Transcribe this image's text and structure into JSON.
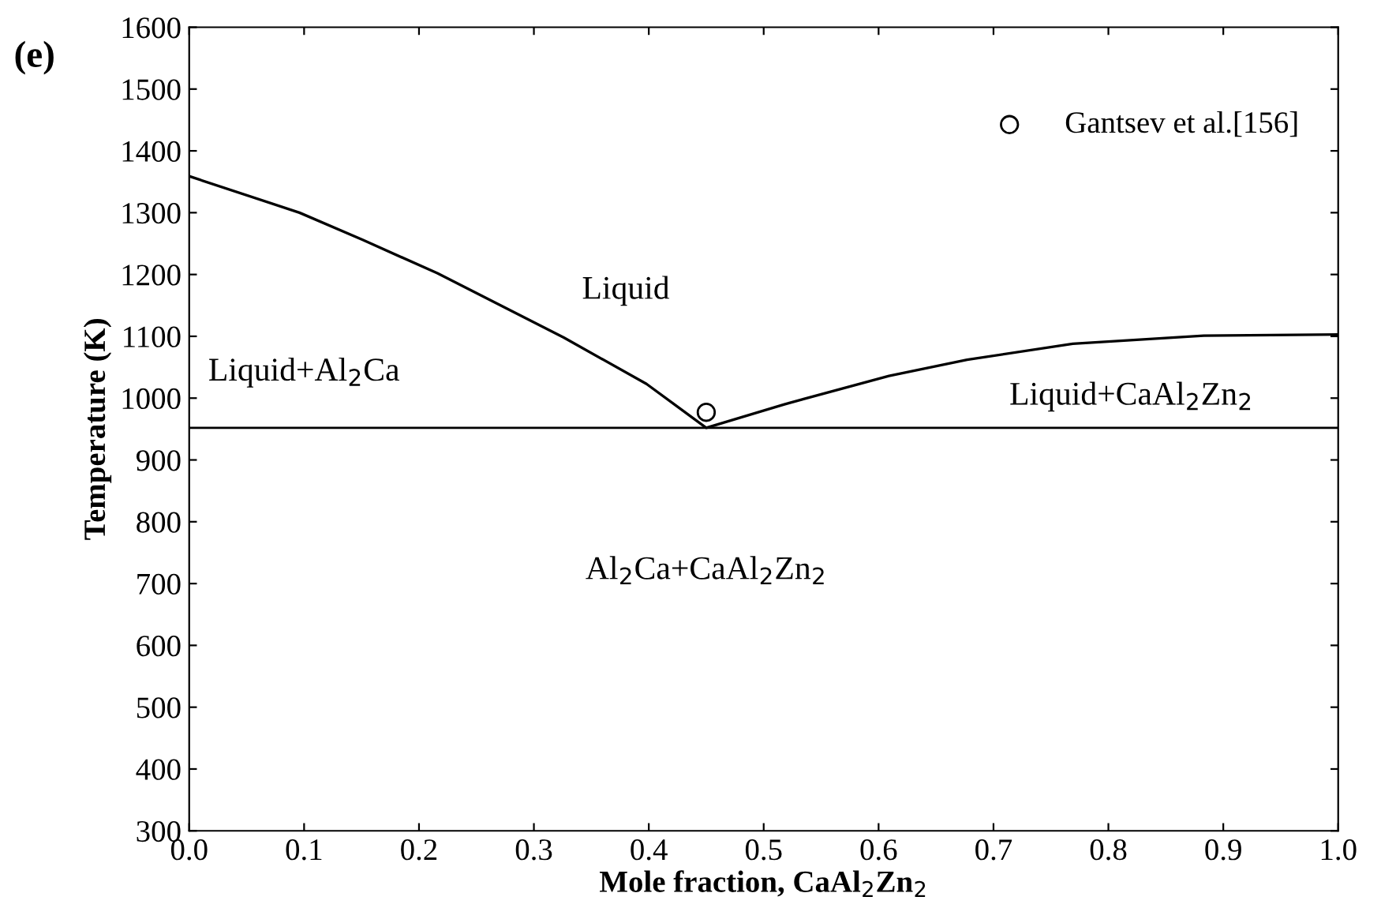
{
  "chart_data": {
    "type": "line",
    "title": "(e)",
    "xlabel": "Mole fraction, CaAl$_{2}$Zn$_{2}$",
    "ylabel": "Temperature (K)",
    "series": [
      {
        "color": "#000000",
        "marker": "none",
        "x": [
          0.0,
          0.096,
          0.151,
          0.216,
          0.326,
          0.398,
          0.45,
          0.518,
          0.609,
          0.677,
          0.769,
          0.883,
          1.0
        ],
        "values": [
          1359,
          1300,
          1256,
          1202,
          1098,
          1023,
          952,
          990,
          1036,
          1062,
          1088,
          1101,
          1103
        ]
      },
      {
        "type": "scatter",
        "name": "Gantsev et al.[156]",
        "color": "#000000",
        "marker": "circle",
        "x": [
          0.45
        ],
        "values": [
          977
        ]
      }
    ],
    "ref_lines": [
      {
        "axis": "y",
        "value": 952,
        "color": "#000000"
      }
    ],
    "annotations": [
      "Liquid",
      "Liquid+Al$_{2}$Ca",
      "Liquid+CaAl$_{2}$Zn$_{2}$",
      "Al$_{2}$Ca+CaAl$_{2}$Zn$_{2}$"
    ],
    "xlim": [
      0.0,
      1.0
    ],
    "xticks": [
      {
        "value": 0.0,
        "label": "0.0"
      },
      0.1,
      0.2,
      0.3,
      0.4,
      0.5,
      0.6,
      0.7,
      0.8,
      0.9,
      {
        "value": 1.0,
        "label": "1.0"
      }
    ],
    "ylim": [
      300,
      1600
    ],
    "yticks": [
      300,
      400,
      500,
      600,
      700,
      800,
      900,
      1000,
      1100,
      1200,
      1300,
      1400,
      1500,
      1600
    ],
    "grid": false,
    "legend": "top right"
  }
}
